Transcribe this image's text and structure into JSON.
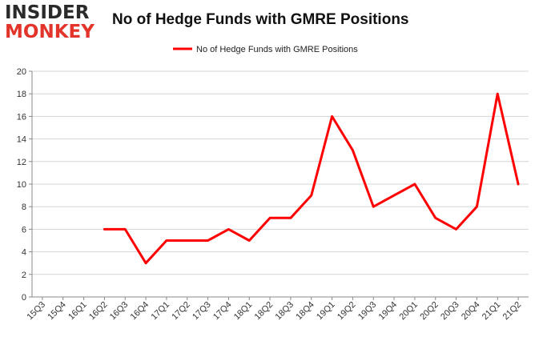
{
  "logo": {
    "line1": "INSIDER",
    "line2": "MONKEY"
  },
  "colors": {
    "series": "#ff0000",
    "grid": "#d4d4d4",
    "axis": "#888888",
    "logo_accent": "#e3342b"
  },
  "chart_data": {
    "type": "line",
    "title": "No of Hedge Funds with GMRE Positions",
    "xlabel": "",
    "ylabel": "",
    "ylim": [
      0,
      20
    ],
    "yticks": [
      0,
      2,
      4,
      6,
      8,
      10,
      12,
      14,
      16,
      18,
      20
    ],
    "categories": [
      "15Q3",
      "15Q4",
      "16Q1",
      "16Q2",
      "16Q3",
      "16Q4",
      "17Q1",
      "17Q2",
      "17Q3",
      "17Q4",
      "18Q1",
      "18Q2",
      "18Q3",
      "18Q4",
      "19Q1",
      "19Q2",
      "19Q3",
      "19Q4",
      "20Q1",
      "20Q2",
      "20Q3",
      "20Q4",
      "21Q1",
      "21Q2"
    ],
    "series": [
      {
        "name": "No of Hedge Funds with GMRE Positions",
        "values": [
          null,
          null,
          null,
          6,
          6,
          3,
          5,
          5,
          5,
          6,
          5,
          7,
          7,
          9,
          16,
          13,
          8,
          9,
          10,
          7,
          6,
          8,
          18,
          10
        ]
      }
    ],
    "legend_position": "top-center",
    "grid": true
  }
}
